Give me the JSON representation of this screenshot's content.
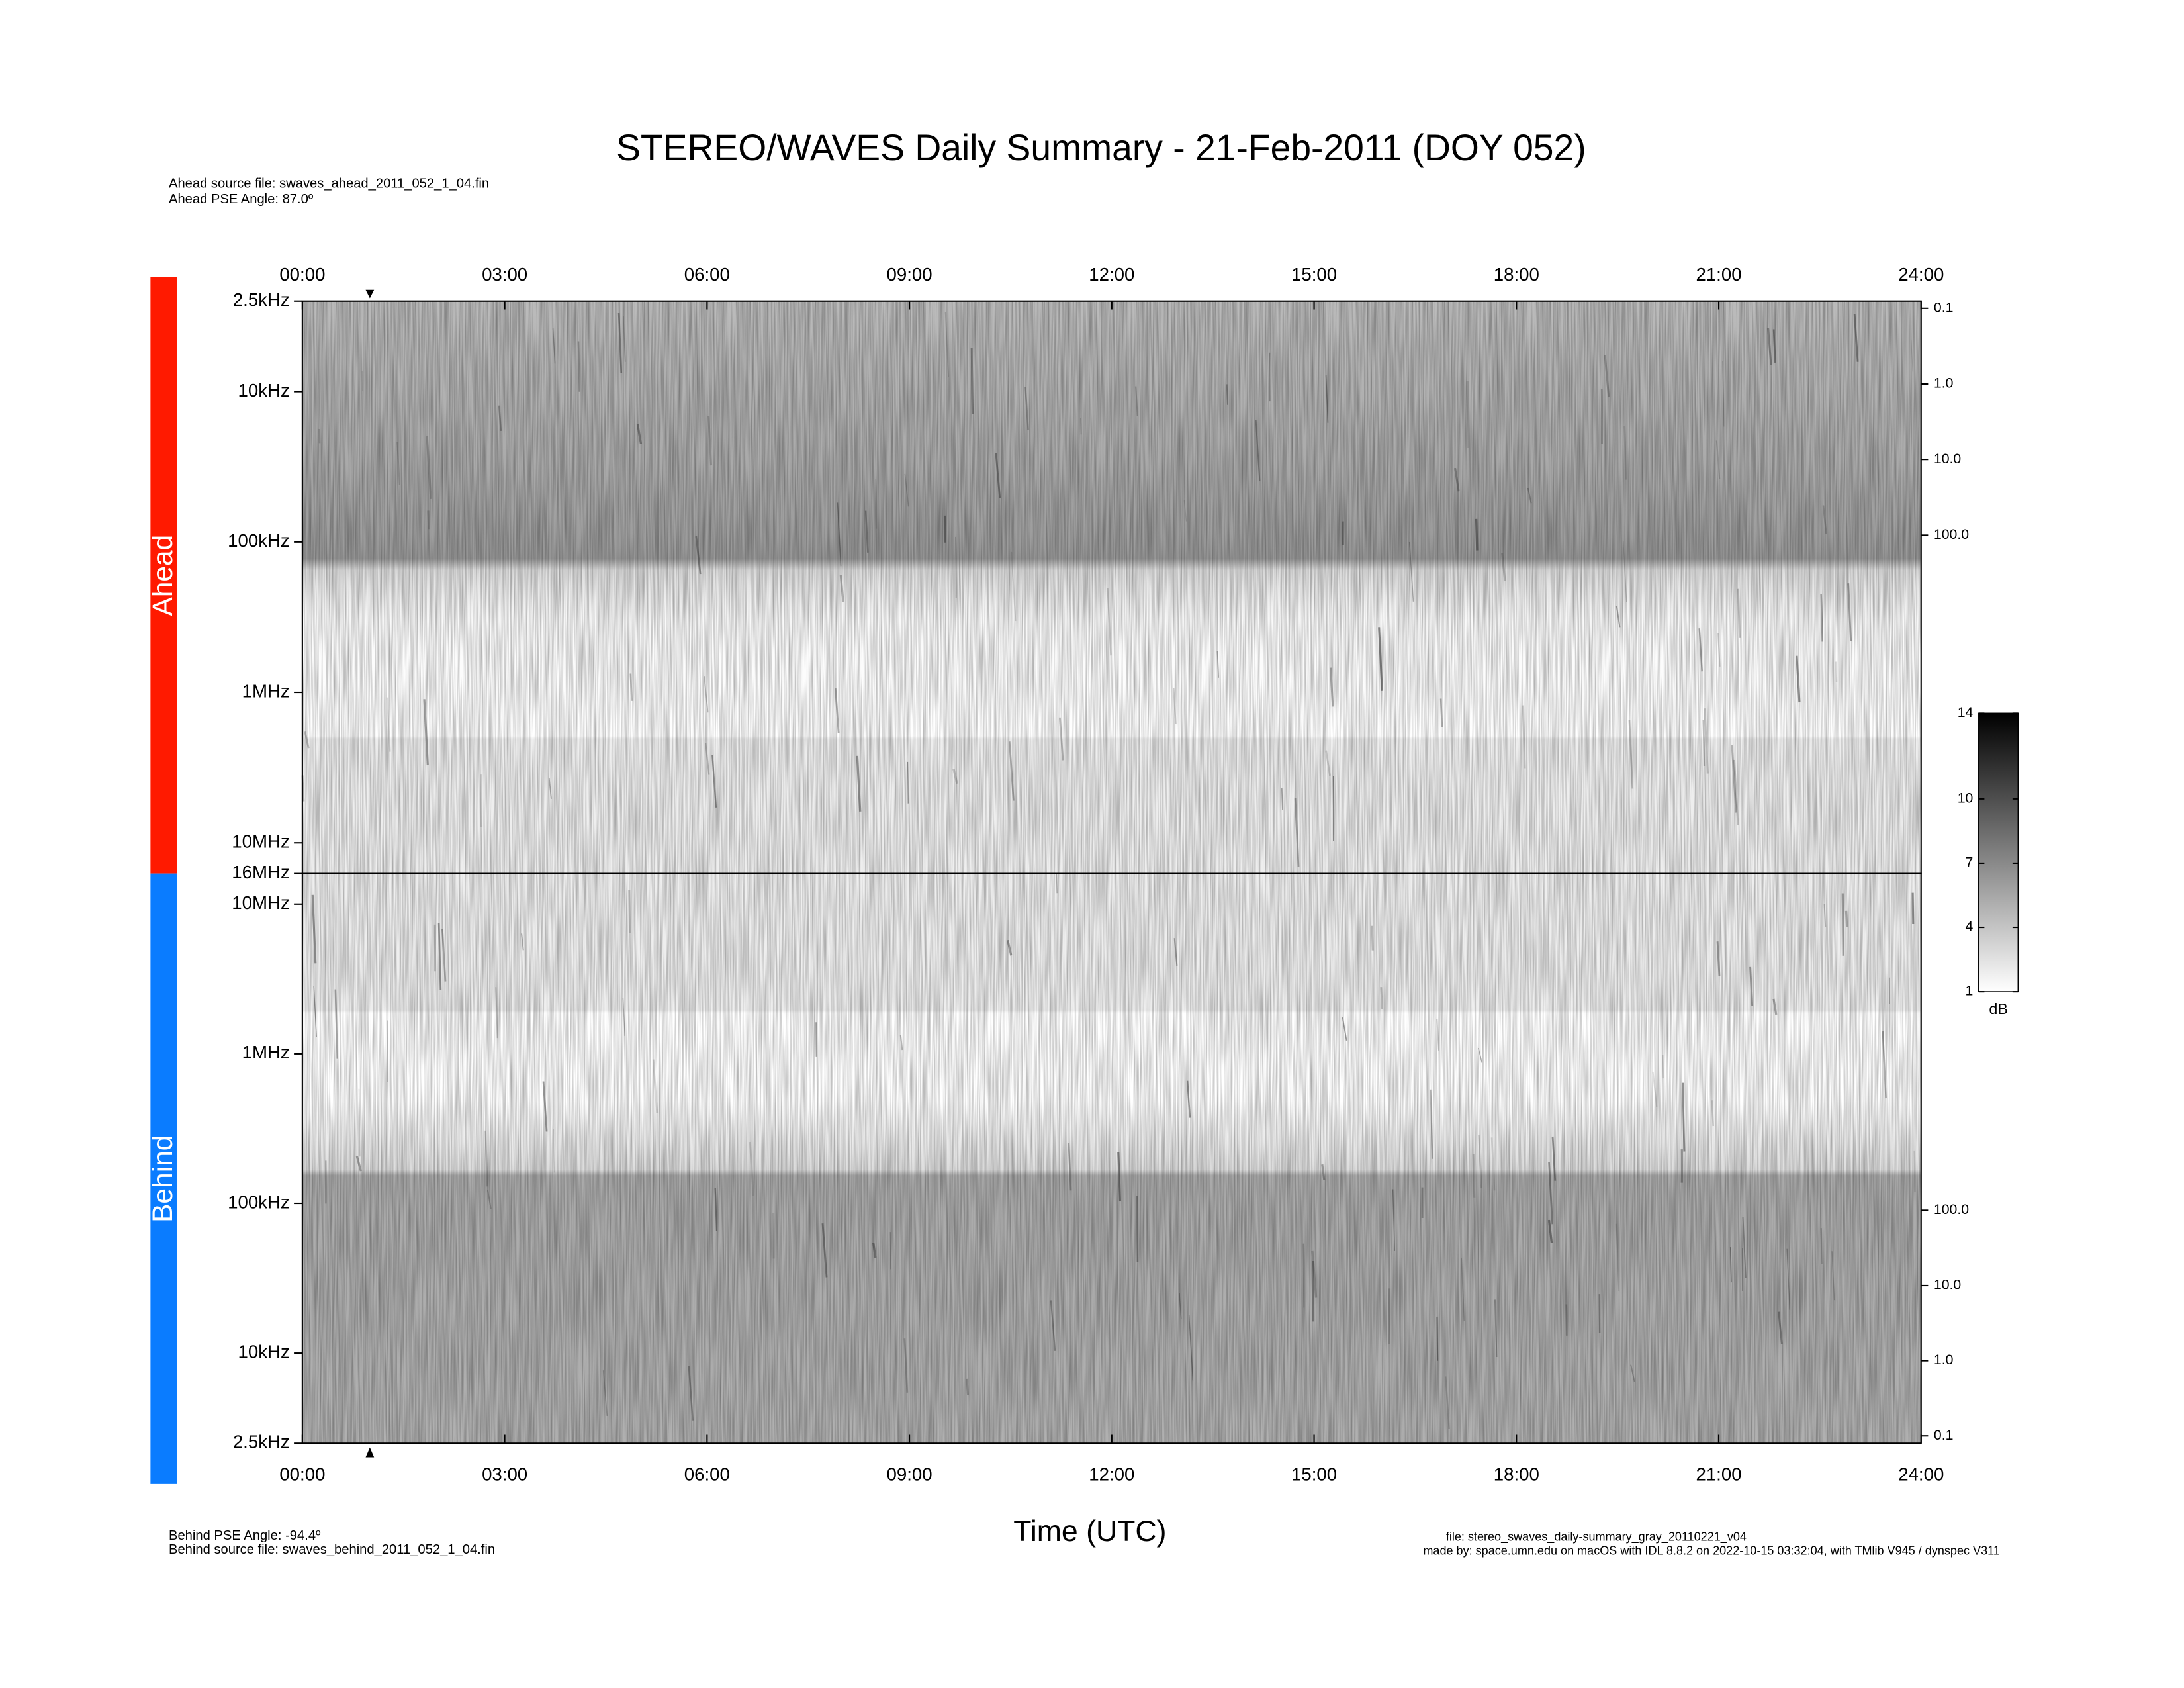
{
  "header": {
    "title": "STEREO/WAVES Daily Summary - 21-Feb-2011 (DOY 052)",
    "ahead_source": "Ahead source file: swaves_ahead_2011_052_1_04.fin",
    "ahead_angle": "Ahead PSE Angle:   87.0º"
  },
  "footer": {
    "behind_angle": "Behind PSE Angle:  -94.4º",
    "behind_source": "Behind source file: swaves_behind_2011_052_1_04.fin",
    "xlabel": "Time (UTC)",
    "file": "file: stereo_swaves_daily-summary_gray_20110221_v04",
    "made_by": "made by: space.umn.edu on macOS with IDL 8.8.2 on 2022-10-15 03:32:04, with TMlib V945 / dynspec V311"
  },
  "chart_data": [
    {
      "type": "spectrogram",
      "label": "Ahead",
      "color": "#ff1a00",
      "xaxis": "top",
      "xlim": [
        0,
        24
      ],
      "xticks": [
        {
          "value": 0,
          "label": "00:00"
        },
        {
          "value": 3,
          "label": "03:00"
        },
        {
          "value": 6,
          "label": "06:00"
        },
        {
          "value": 9,
          "label": "09:00"
        },
        {
          "value": 12,
          "label": "12:00"
        },
        {
          "value": 15,
          "label": "15:00"
        },
        {
          "value": 18,
          "label": "18:00"
        },
        {
          "value": 21,
          "label": "21:00"
        },
        {
          "value": 24,
          "label": "24:00"
        }
      ],
      "yscale": "log",
      "ylim": [
        16000,
        2.5
      ],
      "yticks": [
        {
          "value": 2.5,
          "label": "2.5kHz"
        },
        {
          "value": 10,
          "label": "10kHz"
        },
        {
          "value": 100,
          "label": "100kHz"
        },
        {
          "value": 1000,
          "label": "1MHz"
        },
        {
          "value": 10000,
          "label": "10MHz"
        },
        {
          "value": 16000,
          "label": "16MHz"
        }
      ],
      "y2scale": "log",
      "y2lim": [
        3000000,
        0.08
      ],
      "y2ticks": [
        0.1,
        {
          "value": 1,
          "label": "1.0"
        },
        {
          "value": 10,
          "label": "10.0"
        },
        {
          "value": 100,
          "label": "100.0"
        }
      ]
    },
    {
      "type": "spectrogram",
      "label": "Behind",
      "color": "#0a7cff",
      "xaxis": "bottom",
      "xlim": [
        0,
        24
      ],
      "xticks": [
        {
          "value": 0,
          "label": "00:00"
        },
        {
          "value": 3,
          "label": "03:00"
        },
        {
          "value": 6,
          "label": "06:00"
        },
        {
          "value": 9,
          "label": "09:00"
        },
        {
          "value": 12,
          "label": "12:00"
        },
        {
          "value": 15,
          "label": "15:00"
        },
        {
          "value": 18,
          "label": "18:00"
        },
        {
          "value": 21,
          "label": "21:00"
        },
        {
          "value": 24,
          "label": "24:00"
        }
      ],
      "yscale": "log",
      "ylim": [
        2.5,
        16000
      ],
      "yticks": [
        {
          "value": 10000,
          "label": "10MHz"
        },
        {
          "value": 1000,
          "label": "1MHz"
        },
        {
          "value": 100,
          "label": "100kHz"
        },
        {
          "value": 10,
          "label": "10kHz"
        },
        {
          "value": 2.5,
          "label": "2.5kHz"
        }
      ],
      "y2scale": "log",
      "y2lim": [
        0.08,
        3000000
      ],
      "y2ticks": [
        {
          "value": 100,
          "label": "100.0"
        },
        {
          "value": 10,
          "label": "10.0"
        },
        {
          "value": 1,
          "label": "1.0"
        },
        0.1
      ]
    }
  ],
  "colorbar": {
    "label": "dB",
    "clim": [
      1,
      14
    ],
    "ticks": [
      1,
      4,
      7,
      10,
      14
    ]
  }
}
